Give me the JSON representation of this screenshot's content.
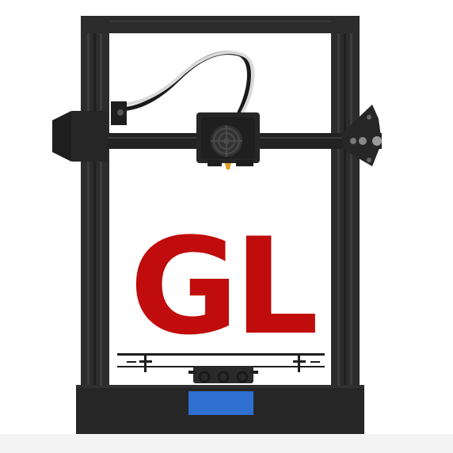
{
  "logo": {
    "text": "GL",
    "color": "#c00c0c"
  },
  "colors": {
    "frame": "#2c2c2c",
    "frame_dark": "#1e1e1e",
    "frame_groove": "#3a3a3a",
    "hotend": "#262626",
    "cable_black": "#1a1a1a",
    "cable_white": "#d9d9d9",
    "screen": "#2f6fd0",
    "nozzle": "#e0a020",
    "background": "#ffffff"
  },
  "icons": {
    "fan": "fan-icon",
    "stepper": "stepper-motor-icon"
  }
}
